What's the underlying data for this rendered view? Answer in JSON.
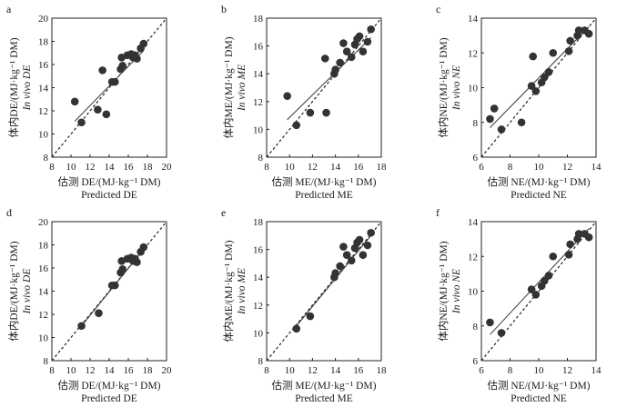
{
  "chart_data": [
    {
      "type": "scatter",
      "letter": "a",
      "xlim": [
        8,
        20
      ],
      "ylim": [
        8,
        20
      ],
      "xticks": [
        8,
        10,
        12,
        14,
        16,
        18,
        20
      ],
      "yticks": [
        8,
        10,
        12,
        14,
        16,
        18,
        20
      ],
      "xlabel_line1": "估测 DE/(MJ·kg⁻¹ DM)",
      "xlabel_line2": "Predicted DE",
      "ylabel_line1": "体内DE/(MJ·kg⁻¹ DM)",
      "ylabel_line2": "In vivo DE",
      "x": [
        10.4,
        11.1,
        12.8,
        13.3,
        13.7,
        14.3,
        14.6,
        15.2,
        15.3,
        15.4,
        15.9,
        16.3,
        16.5,
        16.7,
        16.9,
        17.3,
        17.6
      ],
      "y": [
        12.8,
        11.0,
        12.1,
        15.5,
        11.7,
        14.5,
        14.5,
        15.6,
        16.6,
        15.9,
        16.8,
        16.9,
        16.6,
        16.8,
        16.5,
        17.4,
        17.8
      ],
      "fit": [
        [
          10.4,
          11.1
        ],
        [
          17.6,
          17.2
        ]
      ],
      "show_ref_line": true,
      "grid": false
    },
    {
      "type": "scatter",
      "letter": "b",
      "xlim": [
        8,
        18
      ],
      "ylim": [
        8,
        18
      ],
      "xticks": [
        8,
        10,
        12,
        14,
        16,
        18
      ],
      "yticks": [
        8,
        10,
        12,
        14,
        16,
        18
      ],
      "xlabel_line1": "估测 ME/(MJ·kg⁻¹ DM)",
      "xlabel_line2": "Predicted ME",
      "ylabel_line1": "体内ME/(MJ·kg⁻¹ DM)",
      "ylabel_line2": "In vivo ME",
      "x": [
        9.8,
        10.6,
        11.8,
        13.1,
        13.2,
        13.9,
        14.0,
        14.4,
        14.7,
        15.0,
        15.4,
        15.7,
        15.9,
        16.1,
        16.4,
        16.8,
        17.1
      ],
      "y": [
        12.4,
        10.3,
        11.2,
        15.1,
        11.2,
        14.0,
        14.3,
        14.8,
        16.2,
        15.6,
        15.2,
        16.1,
        16.5,
        16.7,
        15.6,
        16.3,
        17.2
      ],
      "fit": [
        [
          9.8,
          10.7
        ],
        [
          17.1,
          16.6
        ]
      ],
      "show_ref_line": true,
      "grid": false
    },
    {
      "type": "scatter",
      "letter": "c",
      "xlim": [
        6,
        14
      ],
      "ylim": [
        6,
        14
      ],
      "xticks": [
        6,
        8,
        10,
        12,
        14
      ],
      "yticks": [
        6,
        8,
        10,
        12,
        14
      ],
      "xlabel_line1": "估测 NE/(MJ·kg⁻¹ DM)",
      "xlabel_line2": "Predicted NE",
      "ylabel_line1": "体内NE/(MJ·kg⁻¹ DM)",
      "ylabel_line2": "In vivo NE",
      "x": [
        6.6,
        6.9,
        7.4,
        8.8,
        9.5,
        9.6,
        9.8,
        10.2,
        10.4,
        10.7,
        11.0,
        12.1,
        12.2,
        12.7,
        12.8,
        13.2,
        13.5
      ],
      "y": [
        8.2,
        8.8,
        7.6,
        8.0,
        10.1,
        11.8,
        9.8,
        10.3,
        10.6,
        10.9,
        12.0,
        12.1,
        12.7,
        13.0,
        13.3,
        13.3,
        13.1
      ],
      "fit": [
        [
          6.6,
          7.7
        ],
        [
          13.5,
          13.5
        ]
      ],
      "show_ref_line": true,
      "grid": false
    },
    {
      "type": "scatter",
      "letter": "d",
      "xlim": [
        8,
        20
      ],
      "ylim": [
        8,
        20
      ],
      "xticks": [
        8,
        10,
        12,
        14,
        16,
        18,
        20
      ],
      "yticks": [
        8,
        10,
        12,
        14,
        16,
        18,
        20
      ],
      "xlabel_line1": "估测 DE/(MJ·kg⁻¹ DM)",
      "xlabel_line2": "Predicted DE",
      "ylabel_line1": "体内DE/(MJ·kg⁻¹ DM)",
      "ylabel_line2": "In vivo DE",
      "x": [
        11.1,
        12.9,
        14.3,
        14.6,
        15.2,
        15.3,
        15.4,
        15.9,
        16.3,
        16.5,
        16.7,
        16.9,
        17.3,
        17.6
      ],
      "y": [
        11.0,
        12.1,
        14.5,
        14.5,
        15.6,
        16.6,
        15.9,
        16.8,
        16.9,
        16.6,
        16.8,
        16.5,
        17.4,
        17.8
      ],
      "fit": [
        [
          11.1,
          11.0
        ],
        [
          17.6,
          17.6
        ]
      ],
      "show_ref_line": true,
      "grid": false
    },
    {
      "type": "scatter",
      "letter": "e",
      "xlim": [
        8,
        18
      ],
      "ylim": [
        8,
        18
      ],
      "xticks": [
        8,
        10,
        12,
        14,
        16,
        18
      ],
      "yticks": [
        8,
        10,
        12,
        14,
        16,
        18
      ],
      "xlabel_line1": "估测 ME/(MJ·kg⁻¹ DM)",
      "xlabel_line2": "Predicted ME",
      "ylabel_line1": "体内ME/(MJ·kg⁻¹ DM)",
      "ylabel_line2": "In vivo ME",
      "x": [
        10.6,
        11.8,
        13.9,
        14.0,
        14.4,
        14.7,
        15.0,
        15.4,
        15.7,
        15.9,
        16.1,
        16.4,
        16.8,
        17.1
      ],
      "y": [
        10.3,
        11.2,
        14.0,
        14.3,
        14.8,
        16.2,
        15.6,
        15.2,
        16.1,
        16.5,
        16.7,
        15.6,
        16.3,
        17.2
      ],
      "fit": [
        [
          10.6,
          10.5
        ],
        [
          17.1,
          17.0
        ]
      ],
      "show_ref_line": true,
      "grid": false
    },
    {
      "type": "scatter",
      "letter": "f",
      "xlim": [
        6,
        14
      ],
      "ylim": [
        6,
        14
      ],
      "xticks": [
        6,
        8,
        10,
        12,
        14
      ],
      "yticks": [
        6,
        8,
        10,
        12,
        14
      ],
      "xlabel_line1": "估测 NE/(MJ·kg⁻¹ DM)",
      "xlabel_line2": "Predicted NE",
      "ylabel_line1": "体内NE/(MJ·kg⁻¹ DM)",
      "ylabel_line2": "In vivo NE",
      "x": [
        6.6,
        7.4,
        9.5,
        9.8,
        10.2,
        10.4,
        10.7,
        11.0,
        12.1,
        12.2,
        12.7,
        12.8,
        13.2,
        13.5
      ],
      "y": [
        8.2,
        7.6,
        10.1,
        9.8,
        10.3,
        10.6,
        10.9,
        12.0,
        12.1,
        12.7,
        13.0,
        13.3,
        13.3,
        13.1
      ],
      "fit": [
        [
          6.6,
          7.5
        ],
        [
          13.5,
          13.6
        ]
      ],
      "show_ref_line": true,
      "grid": false
    }
  ]
}
